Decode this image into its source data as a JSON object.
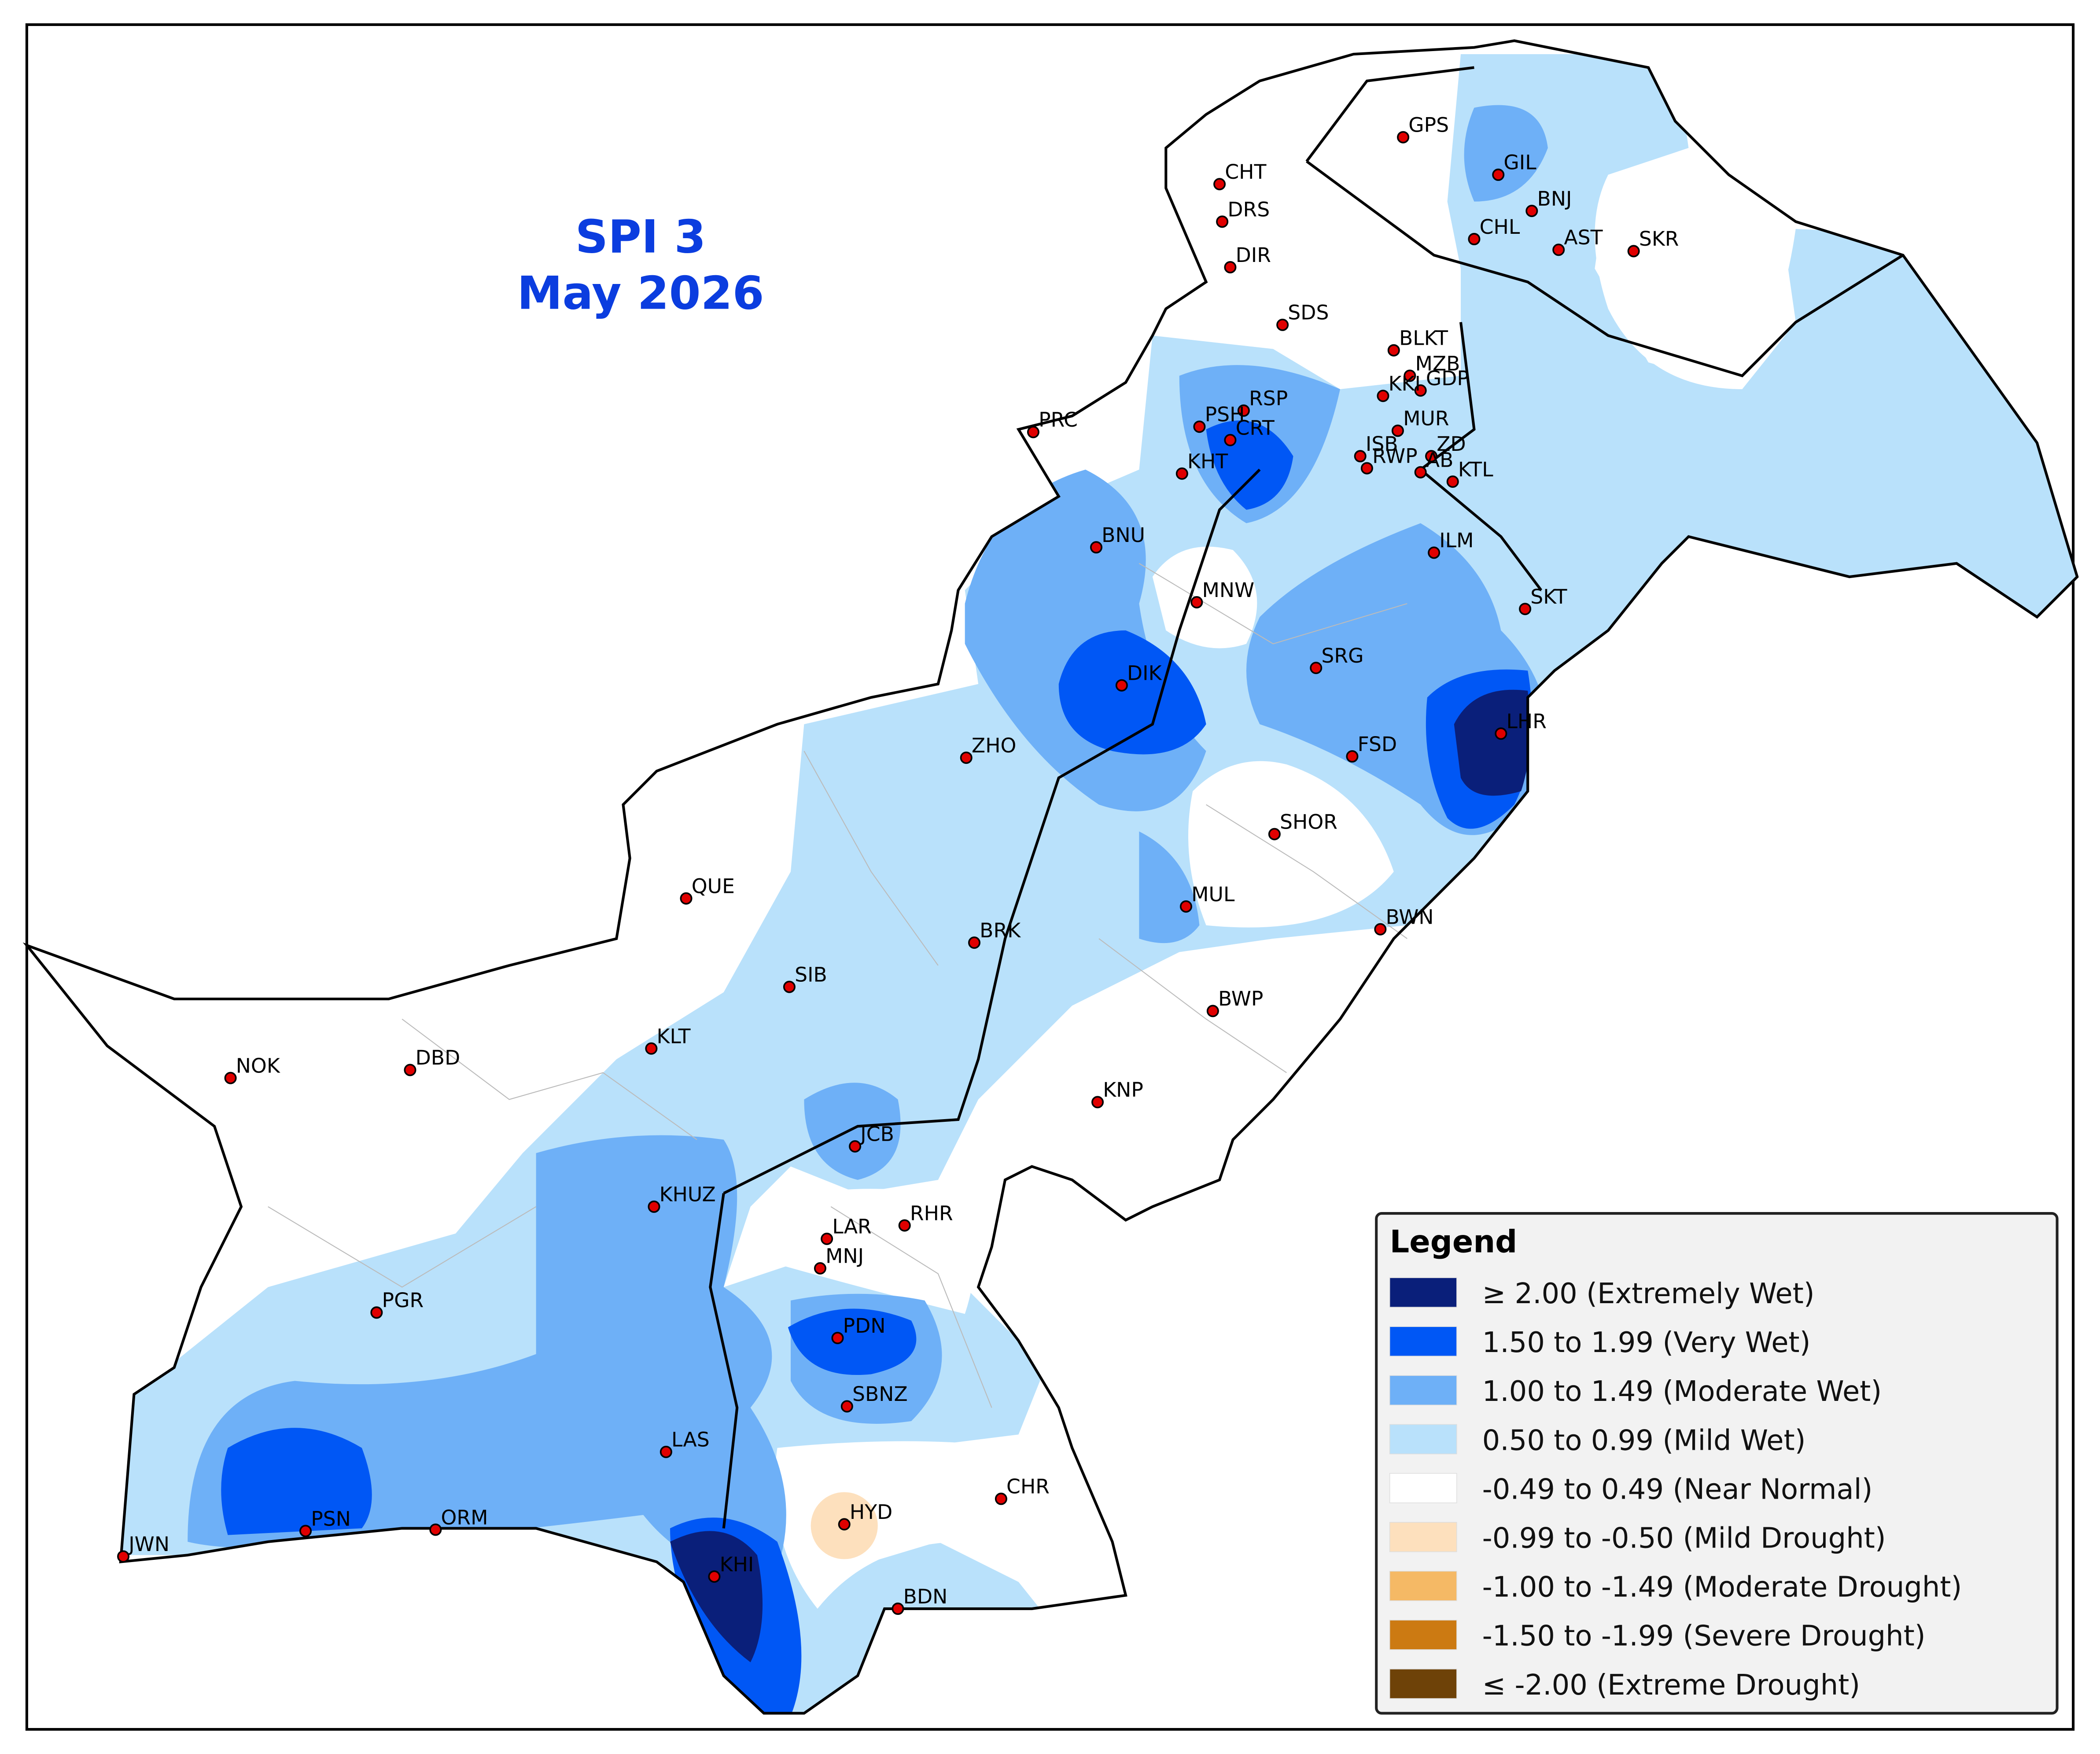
{
  "title": {
    "line1": "SPI 3",
    "line2": "May 2026"
  },
  "stations": [
    "GPS",
    "GIL",
    "CHT",
    "DRS",
    "BNJ",
    "CHL",
    "AST",
    "SKR",
    "DIR",
    "SDS",
    "BLKT",
    "MZB",
    "GDP",
    "KKI",
    "RSP",
    "PRC",
    "PSH",
    "MUR",
    "CRT",
    "ISB",
    "ZD",
    "RWP",
    "AB",
    "KTL",
    "KHT",
    "BNU",
    "ILM",
    "MNW",
    "SKT",
    "SRG",
    "DIK",
    "LHR",
    "FSD",
    "ZHO",
    "SHOR",
    "QUE",
    "MUL",
    "BWN",
    "BRK",
    "SIB",
    "BWP",
    "KLT",
    "NOK",
    "DBD",
    "KNP",
    "JCB",
    "KHUZ",
    "RHR",
    "LAR",
    "MNJ",
    "PGR",
    "PDN",
    "SBNZ",
    "LAS",
    "CHR",
    "HYD",
    "PSN",
    "ORM",
    "JWN",
    "KHI",
    "BDN"
  ],
  "legend": {
    "title": "Legend",
    "items": [
      {
        "label": "≥ 2.00 (Extremely Wet)",
        "color": "#0a1f7a"
      },
      {
        "label": "1.50 to 1.99 (Very Wet)",
        "color": "#0057f5"
      },
      {
        "label": "1.00 to 1.49 (Moderate Wet)",
        "color": "#6eb0f7"
      },
      {
        "label": "0.50 to 0.99 (Mild Wet)",
        "color": "#b9e1fb"
      },
      {
        "label": "-0.49 to 0.49 (Near Normal)",
        "color": "#ffffff"
      },
      {
        "label": "-0.99 to -0.50 (Mild Drought)",
        "color": "#fde0bd"
      },
      {
        "label": "-1.00 to -1.49 (Moderate Drought)",
        "color": "#f5b965"
      },
      {
        "label": "-1.50 to -1.99 (Severe Drought)",
        "color": "#cc7a12"
      },
      {
        "label": "≤ -2.00 (Extreme Drought)",
        "color": "#6e4208"
      }
    ]
  }
}
